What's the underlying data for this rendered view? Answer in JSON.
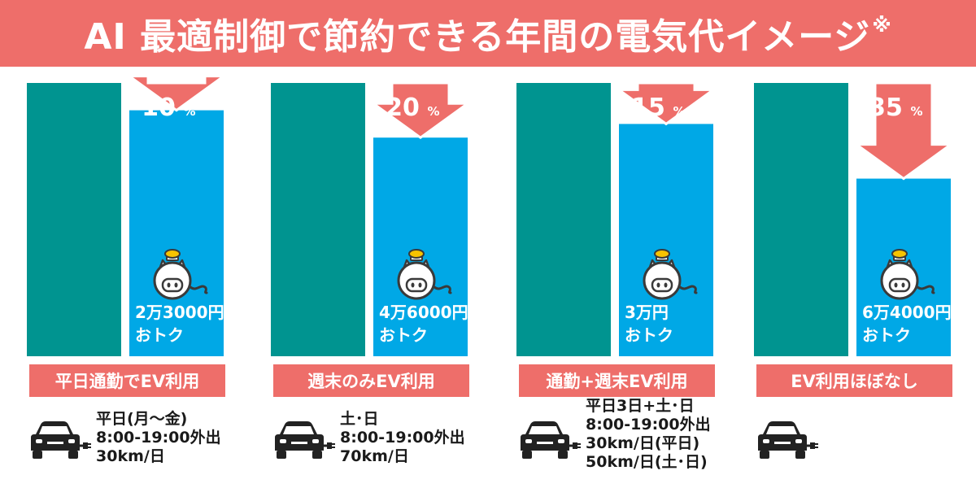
{
  "title": "AI 最適制御で節約できる年間の電気代イメージ",
  "title_note": "※",
  "colors": {
    "banner": "#ee6e6a",
    "baseline_bar": "#009490",
    "ai_bar": "#00a8e6",
    "arrow": "#ee6e6a"
  },
  "chart_data": {
    "type": "bar",
    "series": [
      {
        "values": [
          100,
          100,
          100,
          100
        ]
      },
      {
        "values": [
          90,
          80,
          85,
          65
        ]
      }
    ],
    "ylim": [
      0,
      100
    ],
    "groups": [
      {
        "reduction": "10",
        "savings_line1": "2万3000円",
        "savings_line2": "おトク",
        "scenario": "平日通勤でEV利用",
        "conditions": [
          "平日(月～金)",
          "8:00-19:00外出",
          "30km/日"
        ]
      },
      {
        "reduction": "20",
        "savings_line1": "4万6000円",
        "savings_line2": "おトク",
        "scenario": "週末のみEV利用",
        "conditions": [
          "土･日",
          "8:00-19:00外出",
          "70km/日"
        ]
      },
      {
        "reduction": "15",
        "savings_line1": "3万円",
        "savings_line2": "おトク",
        "scenario": "通勤+週末EV利用",
        "conditions": [
          "平日3日+土･日",
          "8:00-19:00外出",
          "30km/日(平日)",
          "50km/日(土･日)"
        ]
      },
      {
        "reduction": "35",
        "savings_line1": "6万4000円",
        "savings_line2": "おトク",
        "scenario": "EV利用ほぼなし",
        "conditions": []
      }
    ],
    "percent_unit": "%",
    "icons": [
      "piggy-bank-coin-icon",
      "car-charging-plug-icon"
    ]
  }
}
